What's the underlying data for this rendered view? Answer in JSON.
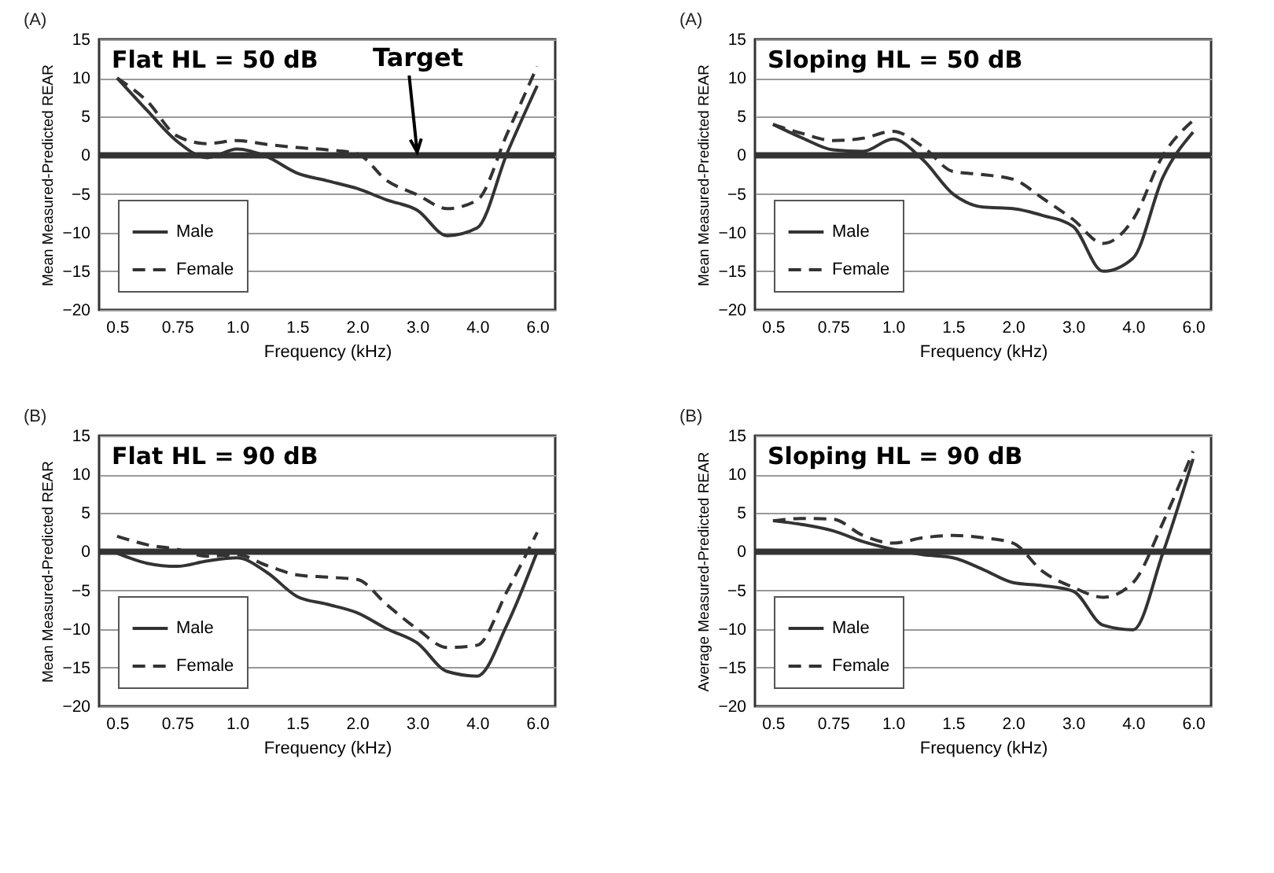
{
  "chart_data": [
    {
      "type": "line",
      "title": "Flat HL = 50 dB",
      "annotations": [
        "(A)",
        {
          "text": "Target",
          "x": "3.0",
          "y": 0
        }
      ],
      "xlabel": "Frequency (kHz)",
      "ylabel": "Mean Measured-Predicted REAR",
      "categories": [
        "0.5",
        null,
        "0.75",
        null,
        "1.0",
        null,
        "1.5",
        null,
        "2.0",
        null,
        "3.0",
        null,
        "4.0",
        null,
        "6.0"
      ],
      "series": [
        {
          "name": "Male",
          "color": "#333333",
          "line_style": "solid",
          "values": [
            10,
            5.8,
            1.8,
            -0.3,
            0.8,
            -0.2,
            -2.3,
            -3.3,
            -4.3,
            -5.8,
            -7.1,
            -10.4,
            -9.4,
            0.3,
            9
          ]
        },
        {
          "name": "Female",
          "color": "#333333",
          "line_style": "dashed",
          "values": [
            10,
            7,
            2.5,
            1.5,
            1.9,
            1.4,
            1.0,
            0.7,
            0.2,
            -3.3,
            -5.1,
            -6.9,
            -5.8,
            2.8,
            11.5
          ]
        }
      ],
      "ylim": [
        -20,
        15
      ],
      "yticks": [
        -20,
        -15,
        -10,
        -5,
        0,
        5,
        10,
        15
      ],
      "grid": "y",
      "legend": "bottom left",
      "ref_lines": [
        {
          "axis": "y",
          "value": 0,
          "color": "#333333"
        }
      ]
    },
    {
      "type": "line",
      "title": "Sloping HL = 50 dB",
      "annotations": [
        "(A)"
      ],
      "xlabel": "Frequency (kHz)",
      "ylabel": "Mean Measured-Predicted REAR",
      "categories": [
        "0.5",
        null,
        "0.75",
        null,
        "1.0",
        null,
        "1.5",
        null,
        "2.0",
        null,
        "3.0",
        null,
        "4.0",
        null,
        "6.0"
      ],
      "series": [
        {
          "name": "Male",
          "color": "#333333",
          "line_style": "solid",
          "values": [
            4,
            2.2,
            0.7,
            0.5,
            2.1,
            -0.6,
            -5,
            -6.7,
            -6.9,
            -7.8,
            -9.2,
            -15,
            -13.3,
            -2.8,
            3
          ]
        },
        {
          "name": "Female",
          "color": "#333333",
          "line_style": "dashed",
          "values": [
            4,
            2.8,
            1.9,
            2.2,
            3.1,
            1.1,
            -2.1,
            -2.5,
            -3.1,
            -5.6,
            -8.3,
            -11.4,
            -8.3,
            0,
            4.5
          ]
        }
      ],
      "ylim": [
        -20,
        15
      ],
      "yticks": [
        -20,
        -15,
        -10,
        -5,
        0,
        5,
        10,
        15
      ],
      "grid": "y",
      "legend": "bottom left",
      "ref_lines": [
        {
          "axis": "y",
          "value": 0,
          "color": "#333333"
        }
      ]
    },
    {
      "type": "line",
      "title": "Flat HL = 90 dB",
      "annotations": [
        "(B)"
      ],
      "xlabel": "Frequency (kHz)",
      "ylabel": "Mean Measured-Predicted REAR",
      "categories": [
        "0.5",
        null,
        "0.75",
        null,
        "1.0",
        null,
        "1.5",
        null,
        "2.0",
        null,
        "3.0",
        null,
        "4.0",
        null,
        "6.0"
      ],
      "series": [
        {
          "name": "Male",
          "color": "#333333",
          "line_style": "solid",
          "values": [
            -0.2,
            -1.5,
            -1.9,
            -1.2,
            -0.8,
            -2.7,
            -5.8,
            -6.8,
            -7.9,
            -10,
            -11.8,
            -15.5,
            -16.1,
            -9.4,
            0
          ]
        },
        {
          "name": "Female",
          "color": "#333333",
          "line_style": "dashed",
          "values": [
            2,
            0.9,
            0.3,
            -0.6,
            -0.4,
            -1.8,
            -3,
            -3.3,
            -3.6,
            -6.9,
            -10,
            -12.4,
            -12.1,
            -5.1,
            2.5
          ]
        }
      ],
      "ylim": [
        -20,
        15
      ],
      "yticks": [
        -20,
        -15,
        -10,
        -5,
        0,
        5,
        10,
        15
      ],
      "grid": "y",
      "legend": "bottom left",
      "ref_lines": [
        {
          "axis": "y",
          "value": 0,
          "color": "#333333"
        }
      ]
    },
    {
      "type": "line",
      "title": "Sloping HL = 90 dB",
      "annotations": [
        "(B)"
      ],
      "xlabel": "Frequency (kHz)",
      "ylabel": "Average Measured-Predicted REAR",
      "categories": [
        "0.5",
        null,
        "0.75",
        null,
        "1.0",
        null,
        "1.5",
        null,
        "2.0",
        null,
        "3.0",
        null,
        "4.0",
        null,
        "6.0"
      ],
      "series": [
        {
          "name": "Male",
          "color": "#333333",
          "line_style": "solid",
          "values": [
            4,
            3.5,
            2.7,
            1.3,
            0.3,
            -0.4,
            -0.8,
            -2.3,
            -4,
            -4.4,
            -5.1,
            -9.5,
            -10.1,
            -0.1,
            12
          ]
        },
        {
          "name": "Female",
          "color": "#333333",
          "line_style": "dashed",
          "values": [
            4,
            4.3,
            4.2,
            2.1,
            1.1,
            1.8,
            2.1,
            1.8,
            1.1,
            -2.6,
            -4.6,
            -5.9,
            -4,
            3.8,
            13
          ]
        }
      ],
      "ylim": [
        -20,
        15
      ],
      "yticks": [
        -20,
        -15,
        -10,
        -5,
        0,
        5,
        10,
        15
      ],
      "grid": "y",
      "legend": "bottom left",
      "ref_lines": [
        {
          "axis": "y",
          "value": 0,
          "color": "#333333"
        }
      ]
    }
  ]
}
